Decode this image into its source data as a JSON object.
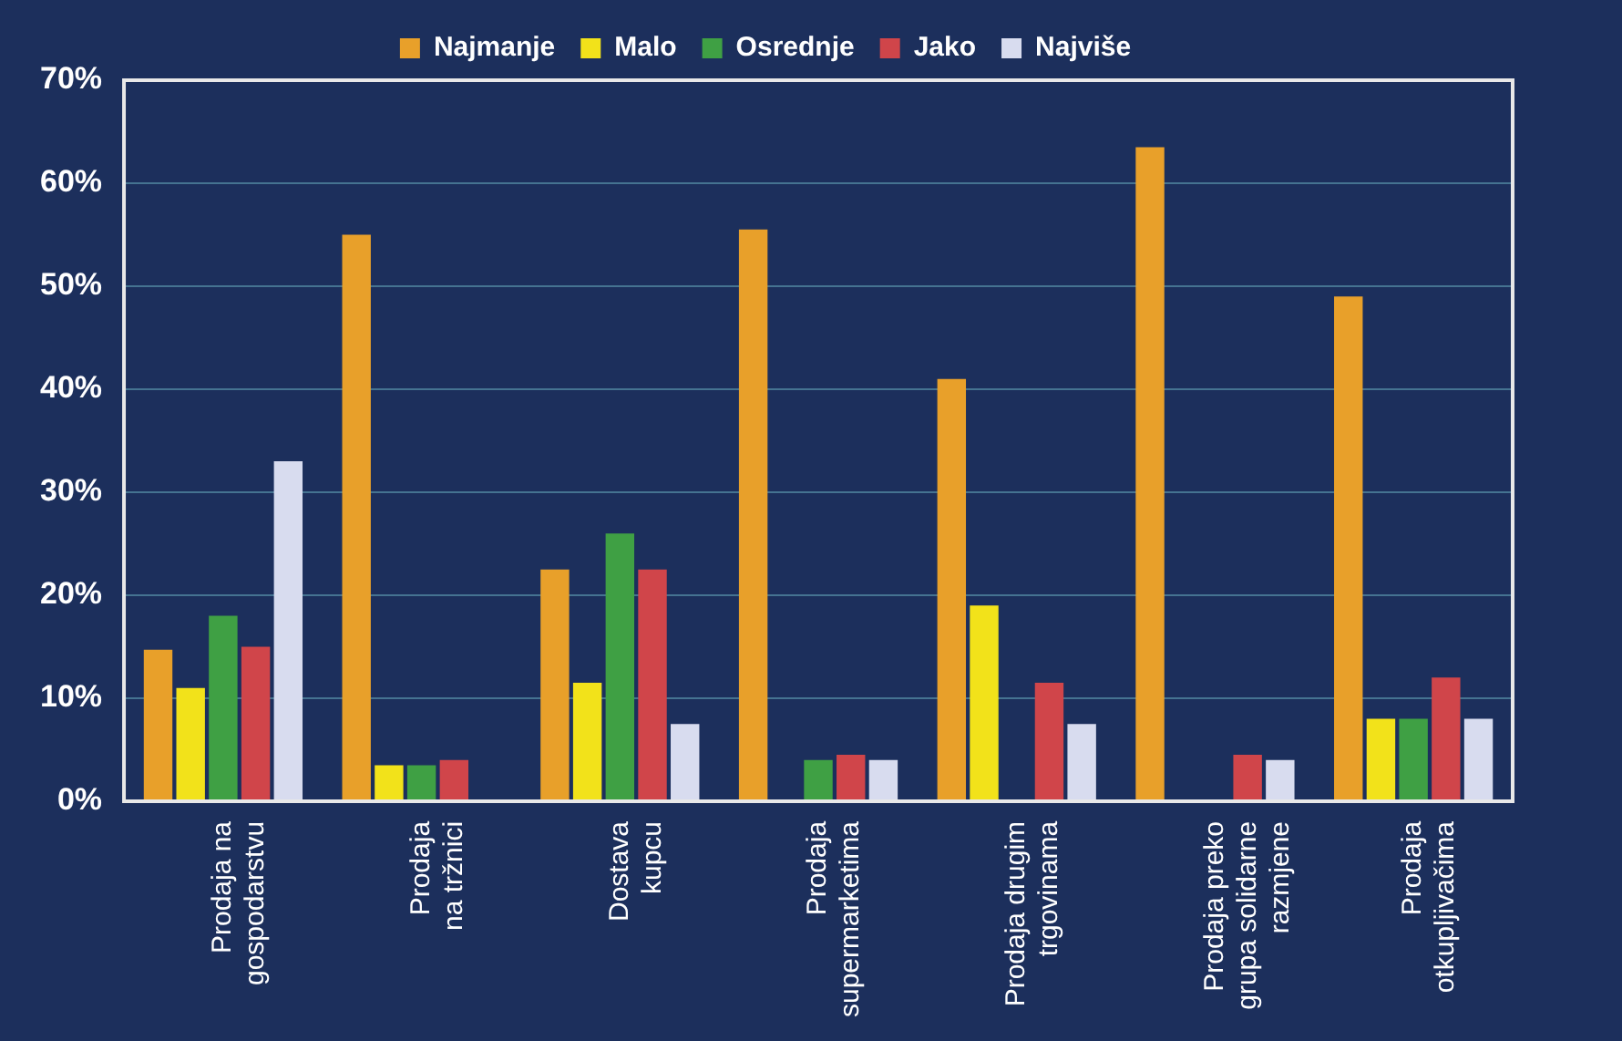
{
  "chart_data": {
    "type": "bar",
    "categories": [
      "Prodaja na\ngospodarstvu",
      "Prodaja\nna tržnici",
      "Dostava\nkupcu",
      "Prodaja\nsupermarketima",
      "Prodaja drugim\ntrgovinama",
      "Prodaja preko\ngrupa solidarne\nrazmjene",
      "Prodaja\notkupljivačima"
    ],
    "series": [
      {
        "name": "Najmanje",
        "color": "#e8a02a",
        "values": [
          14.7,
          55,
          22.5,
          55.5,
          41,
          63.5,
          49
        ]
      },
      {
        "name": "Malo",
        "color": "#f2e21a",
        "values": [
          11,
          3.5,
          11.5,
          null,
          19,
          null,
          8
        ]
      },
      {
        "name": "Osrednje",
        "color": "#3fa044",
        "values": [
          18,
          3.5,
          26,
          4,
          null,
          null,
          8
        ]
      },
      {
        "name": "Jako",
        "color": "#d0454a",
        "values": [
          15,
          4,
          22.5,
          4.5,
          11.5,
          4.5,
          12
        ]
      },
      {
        "name": "Najviše",
        "color": "#d8dcef",
        "values": [
          33,
          null,
          7.5,
          4,
          7.5,
          4,
          8
        ]
      }
    ],
    "ylim": [
      0,
      70
    ],
    "yticks": [
      {
        "value": 0,
        "label": "0%"
      },
      {
        "value": 10,
        "label": "10%"
      },
      {
        "value": 20,
        "label": "20%"
      },
      {
        "value": 30,
        "label": "30%"
      },
      {
        "value": 40,
        "label": "40%"
      },
      {
        "value": 50,
        "label": "50%"
      },
      {
        "value": 60,
        "label": "60%"
      },
      {
        "value": 70,
        "label": "70%"
      }
    ],
    "grid": "y",
    "legend": "top"
  }
}
